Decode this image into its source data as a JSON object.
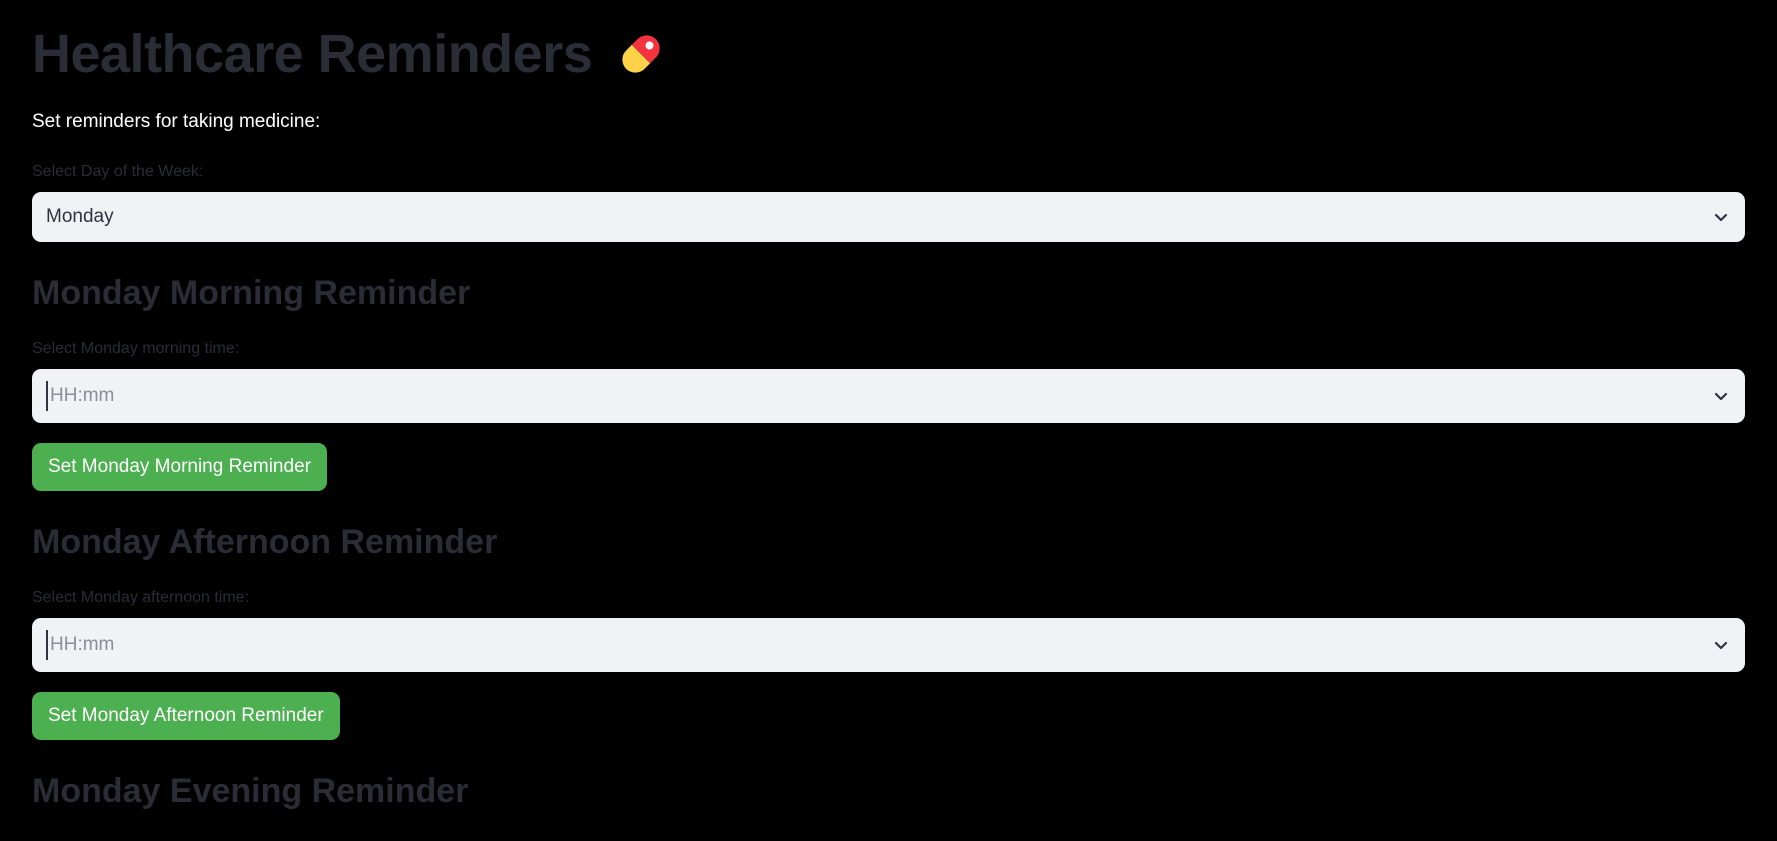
{
  "app": {
    "title": "Healthcare Reminders",
    "title_icon": "pill-icon",
    "intro": "Set reminders for taking medicine:"
  },
  "day_select": {
    "label": "Select Day of the Week:",
    "value": "Monday"
  },
  "sections": [
    {
      "heading": "Monday Morning Reminder",
      "time_label": "Select Monday morning time:",
      "time_placeholder": "HH:mm",
      "button_label": "Set Monday Morning Reminder"
    },
    {
      "heading": "Monday Afternoon Reminder",
      "time_label": "Select Monday afternoon time:",
      "time_placeholder": "HH:mm",
      "button_label": "Set Monday Afternoon Reminder"
    },
    {
      "heading": "Monday Evening Reminder"
    }
  ],
  "colors": {
    "background": "#000000",
    "accent_button": "#4caf50",
    "input_background": "#f0f2f6",
    "muted_text": "#2a2c36"
  }
}
